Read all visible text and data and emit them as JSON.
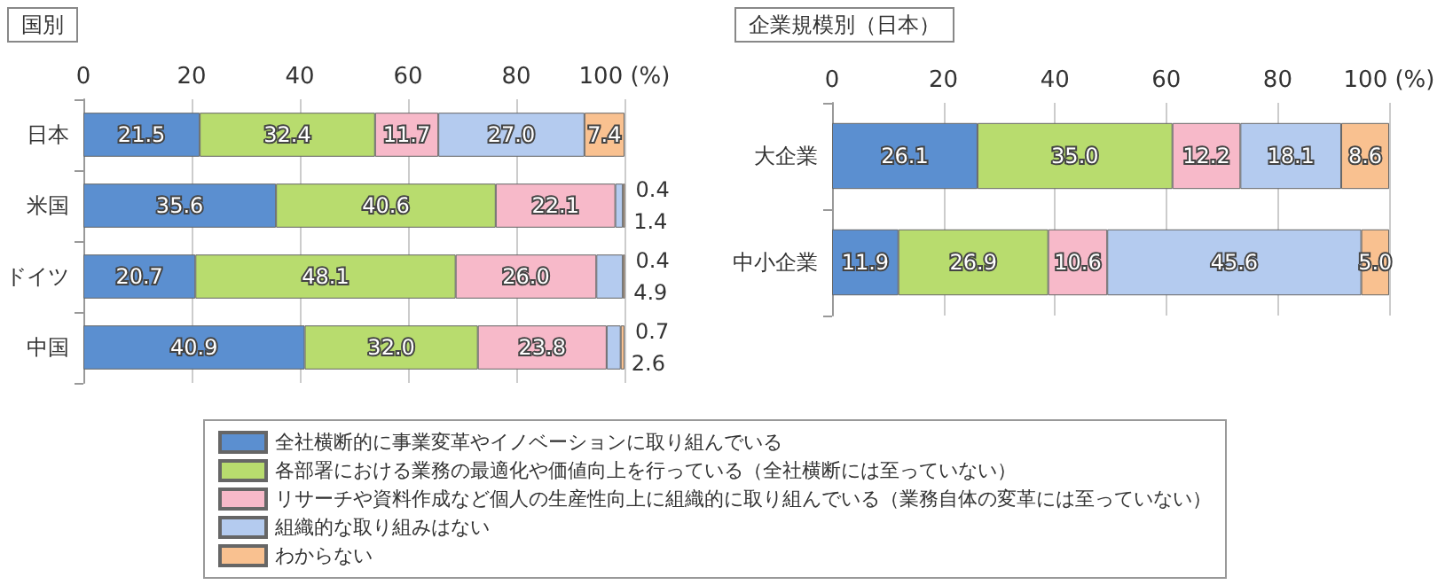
{
  "chart_data": [
    {
      "type": "bar",
      "orientation": "horizontal",
      "stacked": true,
      "title": "国別",
      "categories": [
        "日本",
        "米国",
        "ドイツ",
        "中国"
      ],
      "series": [
        {
          "name": "全社横断的に事業変革やイノベーションに取り組んでいる",
          "color": "#5b8fd0",
          "values": [
            21.5,
            35.6,
            20.7,
            40.9
          ],
          "value_labels": [
            "21.5",
            "35.6",
            "20.7",
            "40.9"
          ]
        },
        {
          "name": "各部署における業務の最適化や価値向上を行っている（全社横断には至っていない）",
          "color": "#b8dc6e",
          "values": [
            32.4,
            40.6,
            48.1,
            32.0
          ],
          "value_labels": [
            "32.4",
            "40.6",
            "48.1",
            "32.0"
          ]
        },
        {
          "name": "リサーチや資料作成など個人の生産性向上に組織的に取り組んでいる（業務自体の変革には至っていない）",
          "color": "#f7b9c9",
          "values": [
            11.7,
            22.1,
            26.0,
            23.8
          ],
          "value_labels": [
            "11.7",
            "22.1",
            "26.0",
            "23.8"
          ]
        },
        {
          "name": "組織的な取り組みはない",
          "color": "#b4cbef",
          "values": [
            27.0,
            1.4,
            4.9,
            2.6
          ],
          "value_labels": [
            "27.0",
            "1.4",
            "4.9",
            "2.6"
          ]
        },
        {
          "name": "わからない",
          "color": "#f9c190",
          "values": [
            7.4,
            0.4,
            0.4,
            0.7
          ],
          "value_labels": [
            "7.4",
            "0.4",
            "0.4",
            "0.7"
          ]
        }
      ],
      "xlim": [
        0,
        100
      ],
      "xticks": [
        0,
        20,
        40,
        60,
        80,
        {
          "value": 100,
          "label": "100 (%)"
        }
      ],
      "grid": "x",
      "legend": "bottom"
    },
    {
      "type": "bar",
      "orientation": "horizontal",
      "stacked": true,
      "title": "企業規模別（日本）",
      "categories": [
        "大企業",
        "中小企業"
      ],
      "series": [
        {
          "color": "#5b8fd0",
          "values": [
            26.1,
            11.9
          ],
          "value_labels": [
            "26.1",
            "11.9"
          ]
        },
        {
          "color": "#b8dc6e",
          "values": [
            35.0,
            26.9
          ],
          "value_labels": [
            "35.0",
            "26.9"
          ]
        },
        {
          "color": "#f7b9c9",
          "values": [
            12.2,
            10.6
          ],
          "value_labels": [
            "12.2",
            "10.6"
          ]
        },
        {
          "color": "#b4cbef",
          "values": [
            18.1,
            45.6
          ],
          "value_labels": [
            "18.1",
            "45.6"
          ]
        },
        {
          "color": "#f9c190",
          "values": [
            8.6,
            5.0
          ],
          "value_labels": [
            "8.6",
            "5.0"
          ]
        }
      ],
      "xlim": [
        0,
        100
      ],
      "xticks": [
        0,
        20,
        40,
        60,
        80,
        {
          "value": 100,
          "label": "100 (%)"
        }
      ],
      "grid": "x"
    }
  ]
}
